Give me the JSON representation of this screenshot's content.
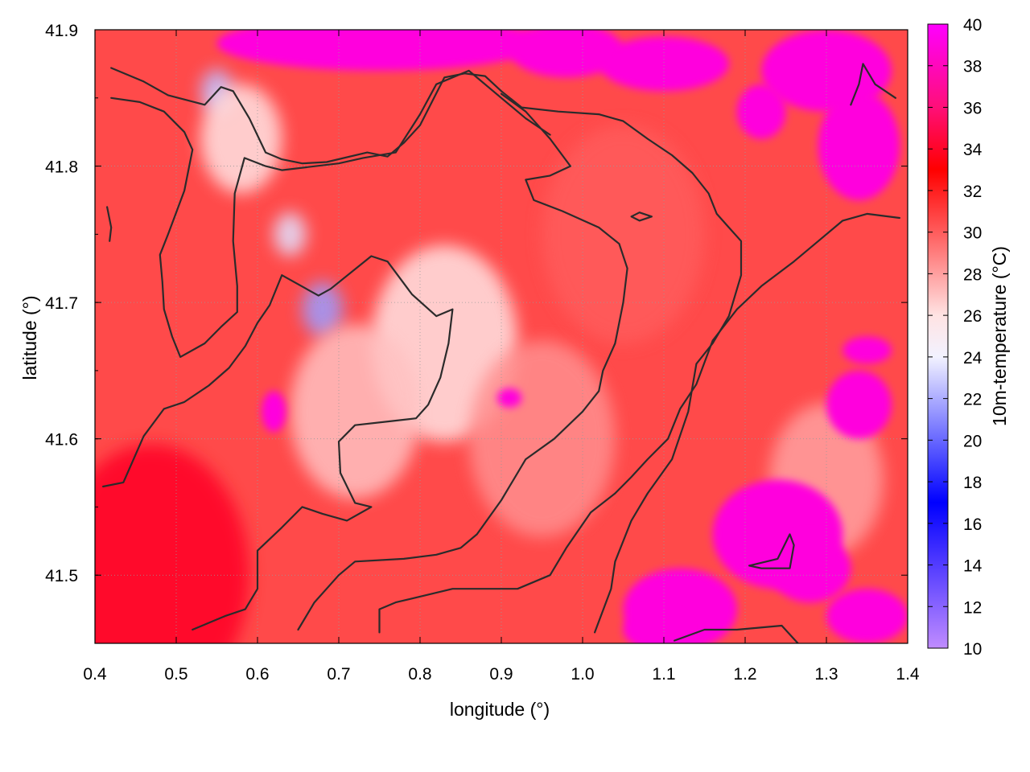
{
  "chart_data": {
    "type": "heatmap",
    "title": "",
    "xlabel": "longitude (°)",
    "ylabel": "latitude (°)",
    "xlim": [
      0.4,
      1.4
    ],
    "ylim": [
      41.45,
      41.9
    ],
    "x_ticks": [
      "0.4",
      "0.5",
      "0.6",
      "0.7",
      "0.8",
      "0.9",
      "1.0",
      "1.1",
      "1.2",
      "1.3",
      "1.4"
    ],
    "y_ticks": [
      "41.5",
      "41.6",
      "41.7",
      "41.8",
      "41.9"
    ],
    "y_tick_values": [
      41.5,
      41.6,
      41.7,
      41.8,
      41.9
    ],
    "grid": true,
    "colorbar": {
      "label": "10m-temperature (°C)",
      "range": [
        10,
        40
      ],
      "ticks": [
        "10",
        "12",
        "14",
        "16",
        "18",
        "20",
        "22",
        "24",
        "26",
        "28",
        "30",
        "32",
        "34",
        "36",
        "38",
        "40"
      ],
      "colormap": [
        {
          "value": 10,
          "color": "#c08cff"
        },
        {
          "value": 17,
          "color": "#0000ff"
        },
        {
          "value": 24,
          "color": "#f2f2ff"
        },
        {
          "value": 26,
          "color": "#ffe3e3"
        },
        {
          "value": 30,
          "color": "#ff5c5c"
        },
        {
          "value": 33,
          "color": "#ff0000"
        },
        {
          "value": 36,
          "color": "#ff0f78"
        },
        {
          "value": 40,
          "color": "#ff00ff"
        }
      ]
    },
    "field_features": [
      {
        "lon": 0.68,
        "lat": 41.695,
        "temp": 21.5,
        "spread": 0.025
      },
      {
        "lon": 0.55,
        "lat": 41.855,
        "temp": 22.5,
        "spread": 0.02
      },
      {
        "lon": 0.64,
        "lat": 41.75,
        "temp": 23.5,
        "spread": 0.02
      },
      {
        "lon": 0.83,
        "lat": 41.67,
        "temp": 26.0,
        "spread": 0.09
      },
      {
        "lon": 0.72,
        "lat": 41.62,
        "temp": 27.0,
        "spread": 0.08
      },
      {
        "lon": 0.58,
        "lat": 41.82,
        "temp": 26.0,
        "spread": 0.05
      },
      {
        "lon": 1.3,
        "lat": 41.57,
        "temp": 28.0,
        "spread": 0.07
      },
      {
        "lon": 0.47,
        "lat": 41.5,
        "temp": 34.0,
        "spread": 0.12
      },
      {
        "lon": 0.95,
        "lat": 41.6,
        "temp": 28.5,
        "spread": 0.09
      },
      {
        "lon": 1.05,
        "lat": 41.75,
        "temp": 30.0,
        "spread": 0.1
      }
    ],
    "hot_patches": [
      {
        "lon": 0.75,
        "lat": 41.89,
        "rx": 0.2,
        "ry": 0.02
      },
      {
        "lon": 0.98,
        "lat": 41.885,
        "rx": 0.07,
        "ry": 0.02
      },
      {
        "lon": 1.1,
        "lat": 41.875,
        "rx": 0.08,
        "ry": 0.02
      },
      {
        "lon": 1.3,
        "lat": 41.87,
        "rx": 0.08,
        "ry": 0.03
      },
      {
        "lon": 1.34,
        "lat": 41.815,
        "rx": 0.05,
        "ry": 0.04
      },
      {
        "lon": 1.22,
        "lat": 41.84,
        "rx": 0.03,
        "ry": 0.02
      },
      {
        "lon": 1.24,
        "lat": 41.53,
        "rx": 0.08,
        "ry": 0.04
      },
      {
        "lon": 1.28,
        "lat": 41.505,
        "rx": 0.05,
        "ry": 0.025
      },
      {
        "lon": 1.12,
        "lat": 41.475,
        "rx": 0.07,
        "ry": 0.03
      },
      {
        "lon": 1.35,
        "lat": 41.47,
        "rx": 0.05,
        "ry": 0.02
      },
      {
        "lon": 1.09,
        "lat": 41.46,
        "rx": 0.04,
        "ry": 0.015
      },
      {
        "lon": 1.34,
        "lat": 41.625,
        "rx": 0.04,
        "ry": 0.025
      },
      {
        "lon": 1.35,
        "lat": 41.665,
        "rx": 0.03,
        "ry": 0.01
      },
      {
        "lon": 0.62,
        "lat": 41.62,
        "rx": 0.015,
        "ry": 0.015
      },
      {
        "lon": 0.91,
        "lat": 41.63,
        "rx": 0.015,
        "ry": 0.007
      }
    ],
    "contours": [
      [
        [
          0.42,
          41.872
        ],
        [
          0.46,
          41.862
        ],
        [
          0.49,
          41.852
        ],
        [
          0.535,
          41.845
        ],
        [
          0.555,
          41.858
        ],
        [
          0.57,
          41.855
        ],
        [
          0.59,
          41.835
        ],
        [
          0.61,
          41.81
        ],
        [
          0.63,
          41.805
        ],
        [
          0.655,
          41.802
        ],
        [
          0.685,
          41.803
        ],
        [
          0.735,
          41.81
        ],
        [
          0.76,
          41.807
        ],
        [
          0.78,
          41.817
        ],
        [
          0.8,
          41.83
        ],
        [
          0.83,
          41.865
        ],
        [
          0.855,
          41.868
        ],
        [
          0.88,
          41.866
        ],
        [
          0.9,
          41.855
        ],
        [
          0.925,
          41.843
        ],
        [
          0.97,
          41.84
        ],
        [
          1.02,
          41.838
        ],
        [
          1.05,
          41.833
        ],
        [
          1.08,
          41.82
        ],
        [
          1.11,
          41.808
        ],
        [
          1.135,
          41.795
        ],
        [
          1.155,
          41.78
        ],
        [
          1.165,
          41.765
        ],
        [
          1.18,
          41.755
        ],
        [
          1.195,
          41.745
        ],
        [
          1.195,
          41.72
        ],
        [
          1.18,
          41.69
        ],
        [
          1.16,
          41.67
        ],
        [
          1.14,
          41.655
        ],
        [
          1.13,
          41.62
        ],
        [
          1.11,
          41.585
        ],
        [
          1.08,
          41.56
        ],
        [
          1.06,
          41.54
        ],
        [
          1.04,
          41.51
        ],
        [
          1.035,
          41.49
        ],
        [
          1.015,
          41.458
        ]
      ],
      [
        [
          0.42,
          41.85
        ],
        [
          0.455,
          41.847
        ],
        [
          0.485,
          41.84
        ],
        [
          0.51,
          41.825
        ],
        [
          0.52,
          41.812
        ],
        [
          0.51,
          41.782
        ],
        [
          0.49,
          41.75
        ],
        [
          0.48,
          41.735
        ],
        [
          0.483,
          41.715
        ],
        [
          0.485,
          41.695
        ],
        [
          0.495,
          41.675
        ],
        [
          0.505,
          41.66
        ],
        [
          0.535,
          41.67
        ],
        [
          0.555,
          41.682
        ],
        [
          0.575,
          41.693
        ],
        [
          0.575,
          41.712
        ],
        [
          0.57,
          41.745
        ],
        [
          0.572,
          41.78
        ],
        [
          0.584,
          41.806
        ],
        [
          0.61,
          41.8
        ],
        [
          0.63,
          41.797
        ],
        [
          0.7,
          41.802
        ],
        [
          0.73,
          41.806
        ],
        [
          0.77,
          41.81
        ],
        [
          0.8,
          41.838
        ],
        [
          0.82,
          41.86
        ],
        [
          0.86,
          41.87
        ],
        [
          0.9,
          41.85
        ],
        [
          0.93,
          41.835
        ],
        [
          0.96,
          41.823
        ]
      ],
      [
        [
          0.415,
          41.77
        ],
        [
          0.42,
          41.755
        ],
        [
          0.418,
          41.745
        ]
      ],
      [
        [
          0.41,
          41.565
        ],
        [
          0.435,
          41.568
        ],
        [
          0.46,
          41.602
        ],
        [
          0.485,
          41.622
        ],
        [
          0.51,
          41.627
        ],
        [
          0.54,
          41.639
        ],
        [
          0.565,
          41.652
        ],
        [
          0.585,
          41.668
        ],
        [
          0.6,
          41.685
        ],
        [
          0.615,
          41.698
        ],
        [
          0.63,
          41.72
        ],
        [
          0.675,
          41.705
        ],
        [
          0.69,
          41.71
        ],
        [
          0.74,
          41.734
        ],
        [
          0.76,
          41.73
        ],
        [
          0.79,
          41.706
        ],
        [
          0.82,
          41.69
        ],
        [
          0.84,
          41.695
        ],
        [
          0.835,
          41.67
        ],
        [
          0.825,
          41.645
        ],
        [
          0.81,
          41.625
        ],
        [
          0.795,
          41.615
        ],
        [
          0.765,
          41.613
        ],
        [
          0.72,
          41.61
        ],
        [
          0.7,
          41.598
        ],
        [
          0.702,
          41.575
        ],
        [
          0.72,
          41.553
        ],
        [
          0.74,
          41.55
        ],
        [
          0.71,
          41.54
        ],
        [
          0.68,
          41.545
        ],
        [
          0.655,
          41.55
        ],
        [
          0.63,
          41.535
        ],
        [
          0.6,
          41.518
        ],
        [
          0.6,
          41.49
        ],
        [
          0.585,
          41.475
        ],
        [
          0.56,
          41.47
        ],
        [
          0.52,
          41.46
        ]
      ],
      [
        [
          0.65,
          41.46
        ],
        [
          0.67,
          41.48
        ],
        [
          0.7,
          41.5
        ],
        [
          0.72,
          41.51
        ],
        [
          0.78,
          41.512
        ],
        [
          0.82,
          41.515
        ],
        [
          0.85,
          41.52
        ],
        [
          0.87,
          41.53
        ],
        [
          0.9,
          41.555
        ],
        [
          0.93,
          41.585
        ],
        [
          0.965,
          41.6
        ],
        [
          1.0,
          41.62
        ],
        [
          1.02,
          41.635
        ],
        [
          1.025,
          41.65
        ],
        [
          1.04,
          41.67
        ],
        [
          1.05,
          41.7
        ],
        [
          1.055,
          41.725
        ],
        [
          1.045,
          41.743
        ],
        [
          1.02,
          41.755
        ],
        [
          0.975,
          41.767
        ],
        [
          0.94,
          41.775
        ],
        [
          0.93,
          41.79
        ],
        [
          0.96,
          41.793
        ],
        [
          0.985,
          41.8
        ],
        [
          0.96,
          41.82
        ],
        [
          0.93,
          41.84
        ],
        [
          0.9,
          41.853
        ]
      ],
      [
        [
          0.75,
          41.458
        ],
        [
          0.75,
          41.475
        ],
        [
          0.77,
          41.48
        ],
        [
          0.84,
          41.49
        ],
        [
          0.88,
          41.49
        ],
        [
          0.92,
          41.49
        ],
        [
          0.96,
          41.5
        ],
        [
          0.98,
          41.52
        ],
        [
          1.01,
          41.546
        ],
        [
          1.04,
          41.56
        ],
        [
          1.06,
          41.572
        ],
        [
          1.08,
          41.585
        ],
        [
          1.105,
          41.6
        ],
        [
          1.12,
          41.622
        ],
        [
          1.14,
          41.64
        ],
        [
          1.16,
          41.672
        ],
        [
          1.19,
          41.695
        ],
        [
          1.22,
          41.712
        ],
        [
          1.26,
          41.73
        ],
        [
          1.29,
          41.745
        ],
        [
          1.32,
          41.76
        ],
        [
          1.35,
          41.765
        ],
        [
          1.39,
          41.762
        ]
      ],
      [
        [
          1.113,
          41.452
        ],
        [
          1.15,
          41.46
        ],
        [
          1.19,
          41.46
        ],
        [
          1.245,
          41.463
        ],
        [
          1.265,
          41.45
        ]
      ],
      [
        [
          1.06,
          41.763
        ],
        [
          1.07,
          41.76
        ],
        [
          1.085,
          41.763
        ],
        [
          1.07,
          41.766
        ],
        [
          1.06,
          41.763
        ]
      ],
      [
        [
          1.205,
          41.507
        ],
        [
          1.24,
          41.512
        ],
        [
          1.255,
          41.53
        ],
        [
          1.26,
          41.522
        ],
        [
          1.255,
          41.505
        ],
        [
          1.22,
          41.505
        ],
        [
          1.205,
          41.507
        ]
      ],
      [
        [
          1.33,
          41.845
        ],
        [
          1.34,
          41.86
        ],
        [
          1.345,
          41.875
        ],
        [
          1.36,
          41.86
        ],
        [
          1.385,
          41.85
        ]
      ]
    ]
  }
}
